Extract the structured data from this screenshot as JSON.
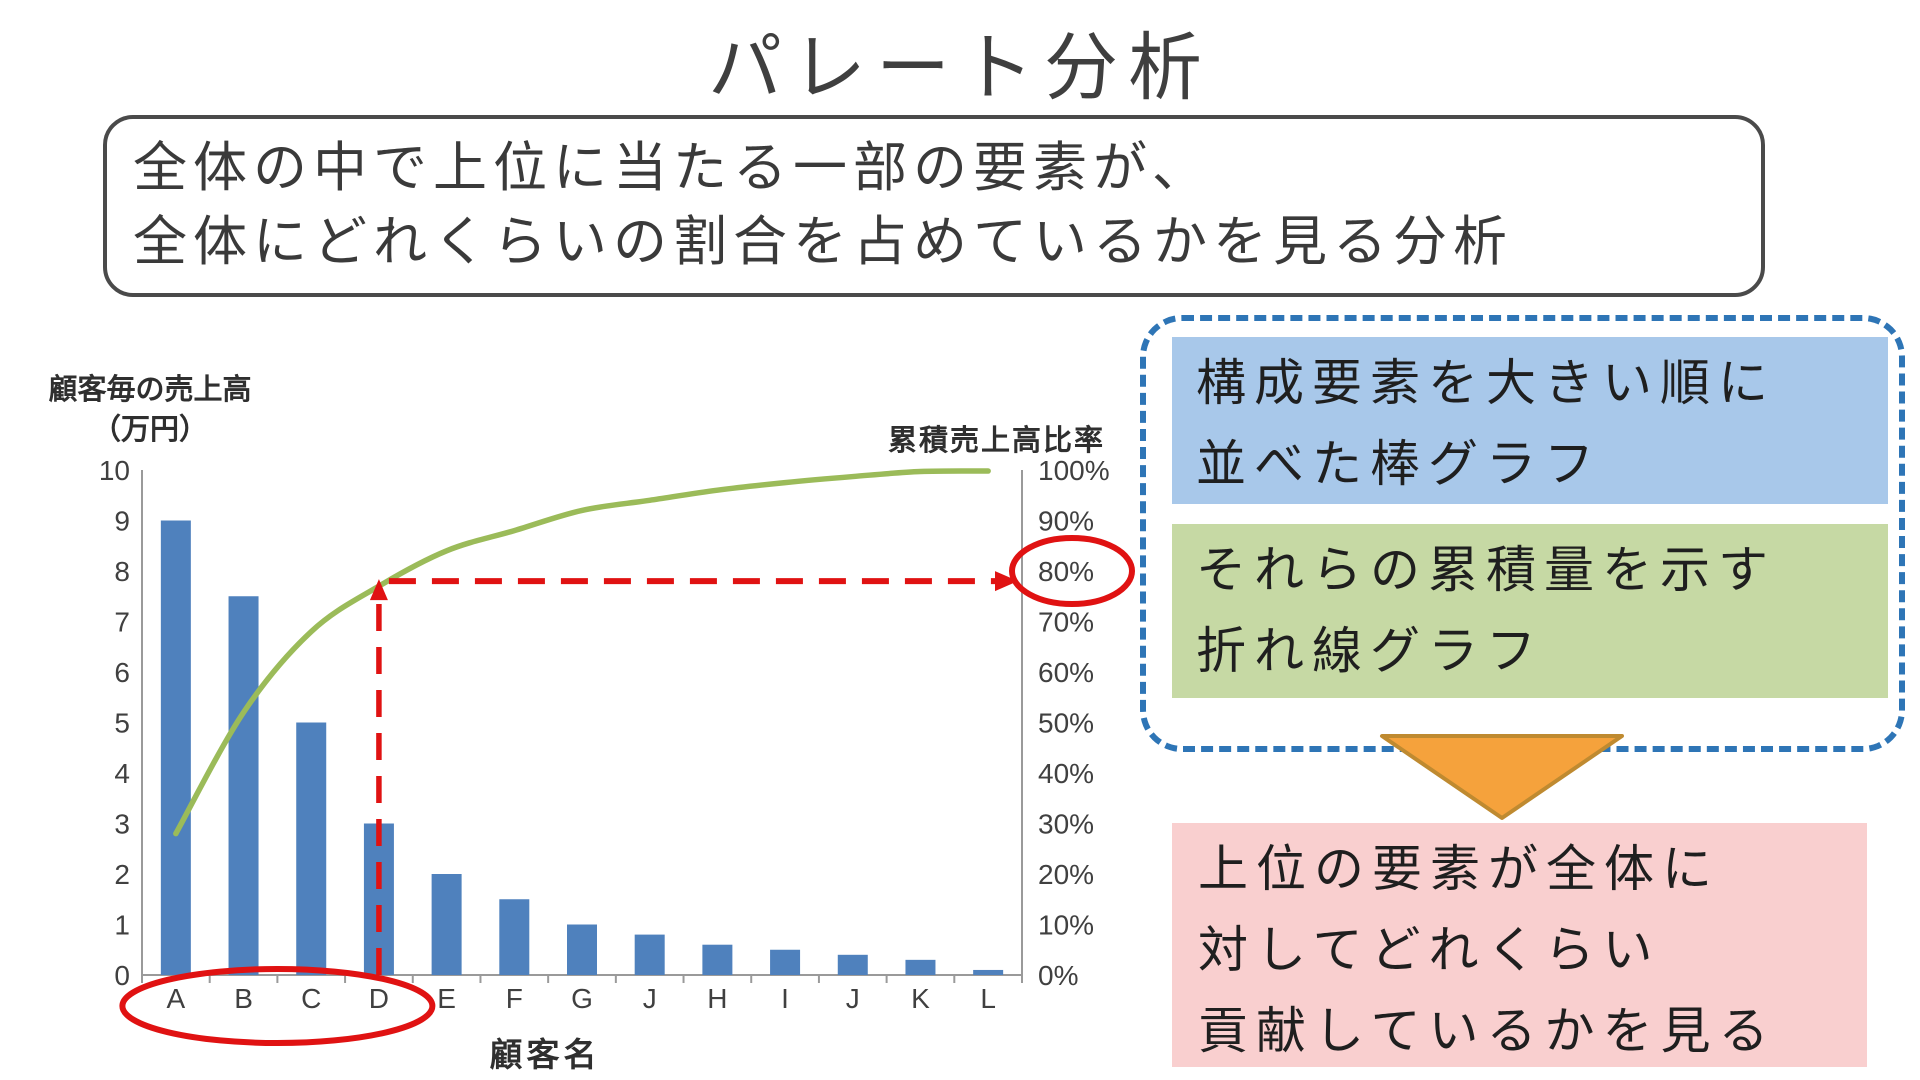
{
  "title": "パレート分析",
  "description": {
    "line1": "全体の中で上位に当たる一部の要素が、",
    "line2": "全体にどれくらいの割合を占めているかを見る分析"
  },
  "chart_data": {
    "type": "bar",
    "subtype": "pareto (sorted bars + cumulative line)",
    "categories": [
      "A",
      "B",
      "C",
      "D",
      "E",
      "F",
      "G",
      "J",
      "H",
      "I",
      "J",
      "K",
      "L"
    ],
    "series": [
      {
        "name": "顧客毎の売上高（万円）",
        "type": "bar",
        "values": [
          9,
          7.5,
          5,
          3,
          2,
          1.5,
          1,
          0.8,
          0.6,
          0.5,
          0.4,
          0.3,
          0.1
        ]
      },
      {
        "name": "累積売上高比率",
        "type": "line",
        "values_pct": [
          28,
          52,
          68,
          77,
          84,
          88,
          92,
          94,
          96,
          97.5,
          98.7,
          99.7,
          99.8
        ]
      }
    ],
    "left_axis": {
      "title_line1": "顧客毎の売上高",
      "title_line2": "（万円）",
      "ticks": [
        "10",
        "9",
        "8",
        "7",
        "6",
        "5",
        "4",
        "3",
        "2",
        "1",
        "0"
      ],
      "range": [
        0,
        10
      ]
    },
    "right_axis": {
      "title": "累積売上高比率",
      "ticks": [
        "100%",
        "90%",
        "80%",
        "70%",
        "60%",
        "50%",
        "40%",
        "30%",
        "20%",
        "10%",
        "0%"
      ],
      "range_pct": [
        0,
        100
      ]
    },
    "x_axis": {
      "title": "顧客名"
    },
    "grid": false,
    "legend": "none",
    "annotations": {
      "circled_categories": "A B C D",
      "circled_right_tick": "80%",
      "dashed_guide": "vertical at D up to cumulative line, horizontal arrow to 80%"
    }
  },
  "callouts": {
    "bar_box": {
      "line1": "構成要素を大きい順に",
      "line2": "並べた棒グラフ"
    },
    "line_box": {
      "line1": "それらの累積量を示す",
      "line2": "折れ線グラフ"
    },
    "result_box": {
      "line1": "上位の要素が全体に",
      "line2": "対してどれくらい",
      "line3": "貢献しているかを見る"
    }
  },
  "colors": {
    "bar_blue": "#4f81bd",
    "line_green": "#9bbb59",
    "annotation_red": "#e01212",
    "callout_border_blue": "#2e75b6",
    "bar_box_bg": "#a8c8ea",
    "line_box_bg": "#c6d9a4",
    "result_box_bg": "#f9cfcf",
    "arrow_orange_fill": "#f5a23c",
    "arrow_orange_stroke": "#bf8a30",
    "axis_gray": "#9a9a9a",
    "tick_text": "#404040",
    "box_border": "#4a4a4a"
  }
}
